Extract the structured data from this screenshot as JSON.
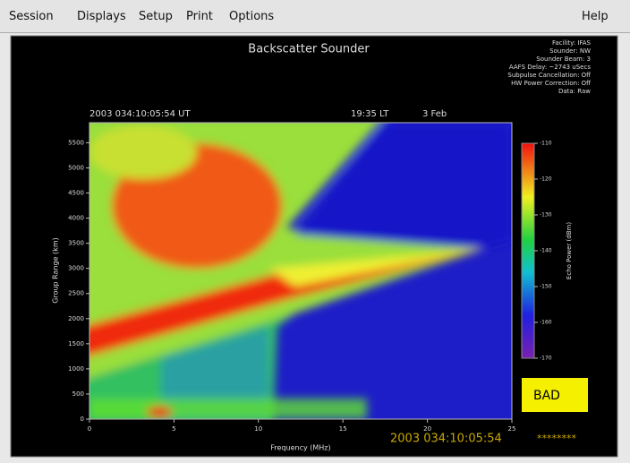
{
  "menu": {
    "items": [
      "Session",
      "Displays",
      "Setup",
      "Print",
      "Options"
    ],
    "help": "Help"
  },
  "chart_data": {
    "type": "heatmap",
    "title": "Backscatter Sounder",
    "info": [
      "Facility: IFAS",
      "Sounder: NW",
      "Sounder Beam: 3",
      "AAFS Delay: ~2743 uSecs",
      "Subpulse Cancellation: Off",
      "HW Power Correction: Off",
      "Data: Raw"
    ],
    "timestamp_ut": "2003  034:10:05:54  UT",
    "local_time": "19:35  LT",
    "date": "3 Feb",
    "xlabel": "Frequency (MHz)",
    "ylabel": "Group Range (km)",
    "xlim": [
      0,
      25
    ],
    "xticks": [
      0,
      5,
      10,
      15,
      20,
      25
    ],
    "ylim": [
      0,
      5900
    ],
    "yticks": [
      0,
      500,
      1000,
      1500,
      2000,
      2500,
      3000,
      3500,
      4000,
      4500,
      5000,
      5500
    ],
    "colorbar": {
      "label": "Echo Power (dBm)",
      "lim": [
        -170,
        -110
      ],
      "ticks": [
        -110,
        -120,
        -130,
        -140,
        -150,
        -160,
        -170
      ]
    }
  },
  "status": {
    "quality": "BAD",
    "time": "2003 034:10:05:54",
    "indicator": "********"
  }
}
